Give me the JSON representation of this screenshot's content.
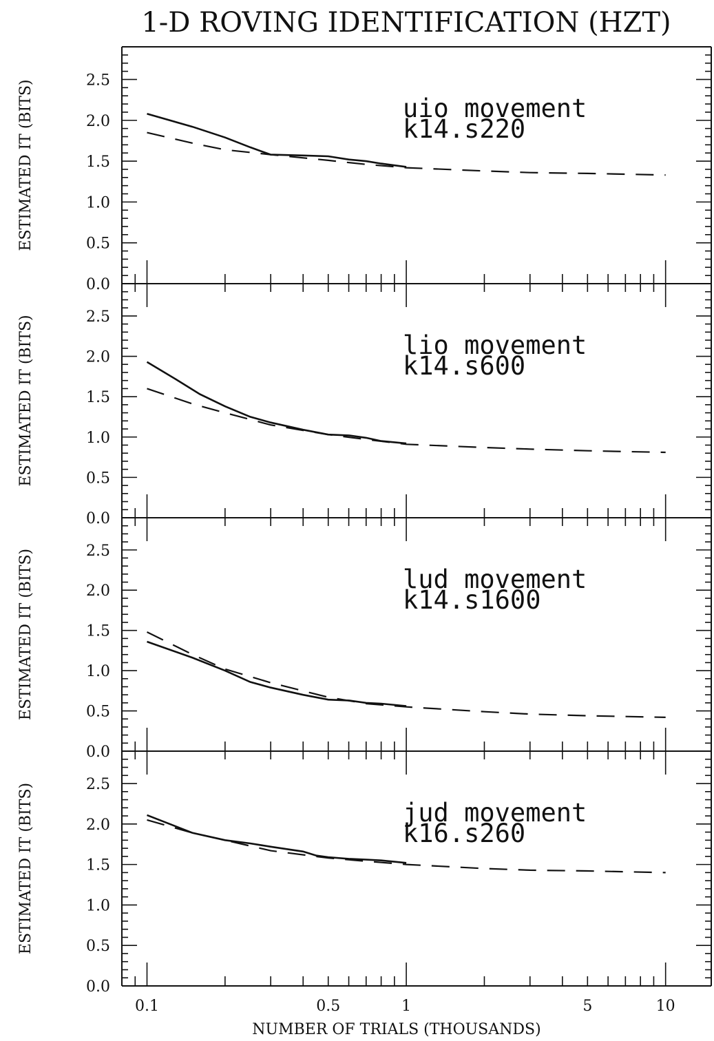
{
  "chart_data": {
    "type": "line",
    "title": "1-D ROVING IDENTIFICATION (HZT)",
    "xlabel": "NUMBER OF TRIALS (THOUSANDS)",
    "x_scale": "log",
    "xlim": [
      0.08,
      15
    ],
    "x_ticks": [
      0.1,
      0.5,
      1,
      5,
      10
    ],
    "x_tick_labels": [
      "0.1",
      "0.5",
      "1",
      "5",
      "10"
    ],
    "panels": [
      {
        "ylabel": "ESTIMATED IT (BITS)",
        "ylim": [
          0,
          2.9
        ],
        "y_ticks": [
          0.0,
          0.5,
          1.0,
          1.5,
          2.0,
          2.5
        ],
        "y_tick_labels": [
          "0.0",
          "0.5",
          "1.0",
          "1.5",
          "2.0",
          "2.5"
        ],
        "annotation": [
          "uio movement",
          "k14.s220"
        ],
        "series": [
          {
            "style": "solid",
            "x": [
              0.1,
              0.15,
              0.2,
              0.25,
              0.3,
              0.4,
              0.5,
              0.6,
              0.7,
              0.8,
              1.0
            ],
            "y": [
              2.08,
              1.92,
              1.79,
              1.67,
              1.58,
              1.57,
              1.56,
              1.52,
              1.5,
              1.47,
              1.43
            ]
          },
          {
            "style": "dashed",
            "x": [
              0.1,
              0.15,
              0.2,
              0.3,
              0.5,
              0.7,
              1.0,
              2.0,
              3.0,
              5.0,
              7.0,
              10.0
            ],
            "y": [
              1.85,
              1.72,
              1.64,
              1.58,
              1.51,
              1.46,
              1.42,
              1.38,
              1.36,
              1.35,
              1.34,
              1.33
            ]
          }
        ]
      },
      {
        "ylabel": "ESTIMATED IT (BITS)",
        "ylim": [
          0,
          2.9
        ],
        "y_ticks": [
          0.0,
          0.5,
          1.0,
          1.5,
          2.0,
          2.5
        ],
        "y_tick_labels": [
          "0.0",
          "0.5",
          "1.0",
          "1.5",
          "2.0",
          "2.5"
        ],
        "annotation": [
          "lio movement",
          "k14.s600"
        ],
        "series": [
          {
            "style": "solid",
            "x": [
              0.1,
              0.13,
              0.16,
              0.2,
              0.25,
              0.3,
              0.4,
              0.5,
              0.6,
              0.7,
              0.8,
              1.0
            ],
            "y": [
              1.93,
              1.71,
              1.53,
              1.38,
              1.25,
              1.18,
              1.09,
              1.03,
              1.02,
              0.99,
              0.95,
              0.92
            ]
          },
          {
            "style": "dashed",
            "x": [
              0.1,
              0.15,
              0.2,
              0.3,
              0.5,
              0.7,
              1.0,
              2.0,
              3.0,
              5.0,
              7.0,
              10.0
            ],
            "y": [
              1.6,
              1.41,
              1.3,
              1.15,
              1.03,
              0.97,
              0.91,
              0.87,
              0.85,
              0.83,
              0.82,
              0.81
            ]
          }
        ]
      },
      {
        "ylabel": "ESTIMATED IT (BITS)",
        "ylim": [
          0,
          2.9
        ],
        "y_ticks": [
          0.0,
          0.5,
          1.0,
          1.5,
          2.0,
          2.5
        ],
        "y_tick_labels": [
          "0.0",
          "0.5",
          "1.0",
          "1.5",
          "2.0",
          "2.5"
        ],
        "annotation": [
          "lud movement",
          "k14.s1600"
        ],
        "series": [
          {
            "style": "solid",
            "x": [
              0.1,
              0.15,
              0.2,
              0.25,
              0.3,
              0.4,
              0.5,
              0.6,
              0.7,
              0.8,
              1.0
            ],
            "y": [
              1.36,
              1.16,
              1.0,
              0.86,
              0.79,
              0.7,
              0.64,
              0.63,
              0.6,
              0.59,
              0.56
            ]
          },
          {
            "style": "dashed",
            "x": [
              0.1,
              0.15,
              0.2,
              0.3,
              0.5,
              0.7,
              1.0,
              2.0,
              3.0,
              5.0,
              7.0,
              10.0
            ],
            "y": [
              1.48,
              1.2,
              1.02,
              0.85,
              0.67,
              0.59,
              0.55,
              0.49,
              0.46,
              0.44,
              0.43,
              0.42
            ]
          }
        ]
      },
      {
        "ylabel": "ESTIMATED IT (BITS)",
        "ylim": [
          0,
          2.9
        ],
        "y_ticks": [
          0.0,
          0.5,
          1.0,
          1.5,
          2.0,
          2.5
        ],
        "y_tick_labels": [
          "0.0",
          "0.5",
          "1.0",
          "1.5",
          "2.0",
          "2.5"
        ],
        "annotation": [
          "jud movement",
          "k16.s260"
        ],
        "series": [
          {
            "style": "solid",
            "x": [
              0.1,
              0.15,
              0.2,
              0.25,
              0.3,
              0.4,
              0.45,
              0.5,
              0.6,
              0.7,
              0.8,
              1.0
            ],
            "y": [
              2.11,
              1.89,
              1.8,
              1.76,
              1.72,
              1.66,
              1.61,
              1.59,
              1.57,
              1.56,
              1.55,
              1.52
            ]
          },
          {
            "style": "dashed",
            "x": [
              0.1,
              0.15,
              0.2,
              0.3,
              0.5,
              0.7,
              1.0,
              2.0,
              3.0,
              5.0,
              7.0,
              10.0
            ],
            "y": [
              2.05,
              1.89,
              1.8,
              1.67,
              1.58,
              1.54,
              1.5,
              1.45,
              1.43,
              1.42,
              1.41,
              1.4
            ]
          }
        ]
      }
    ]
  }
}
